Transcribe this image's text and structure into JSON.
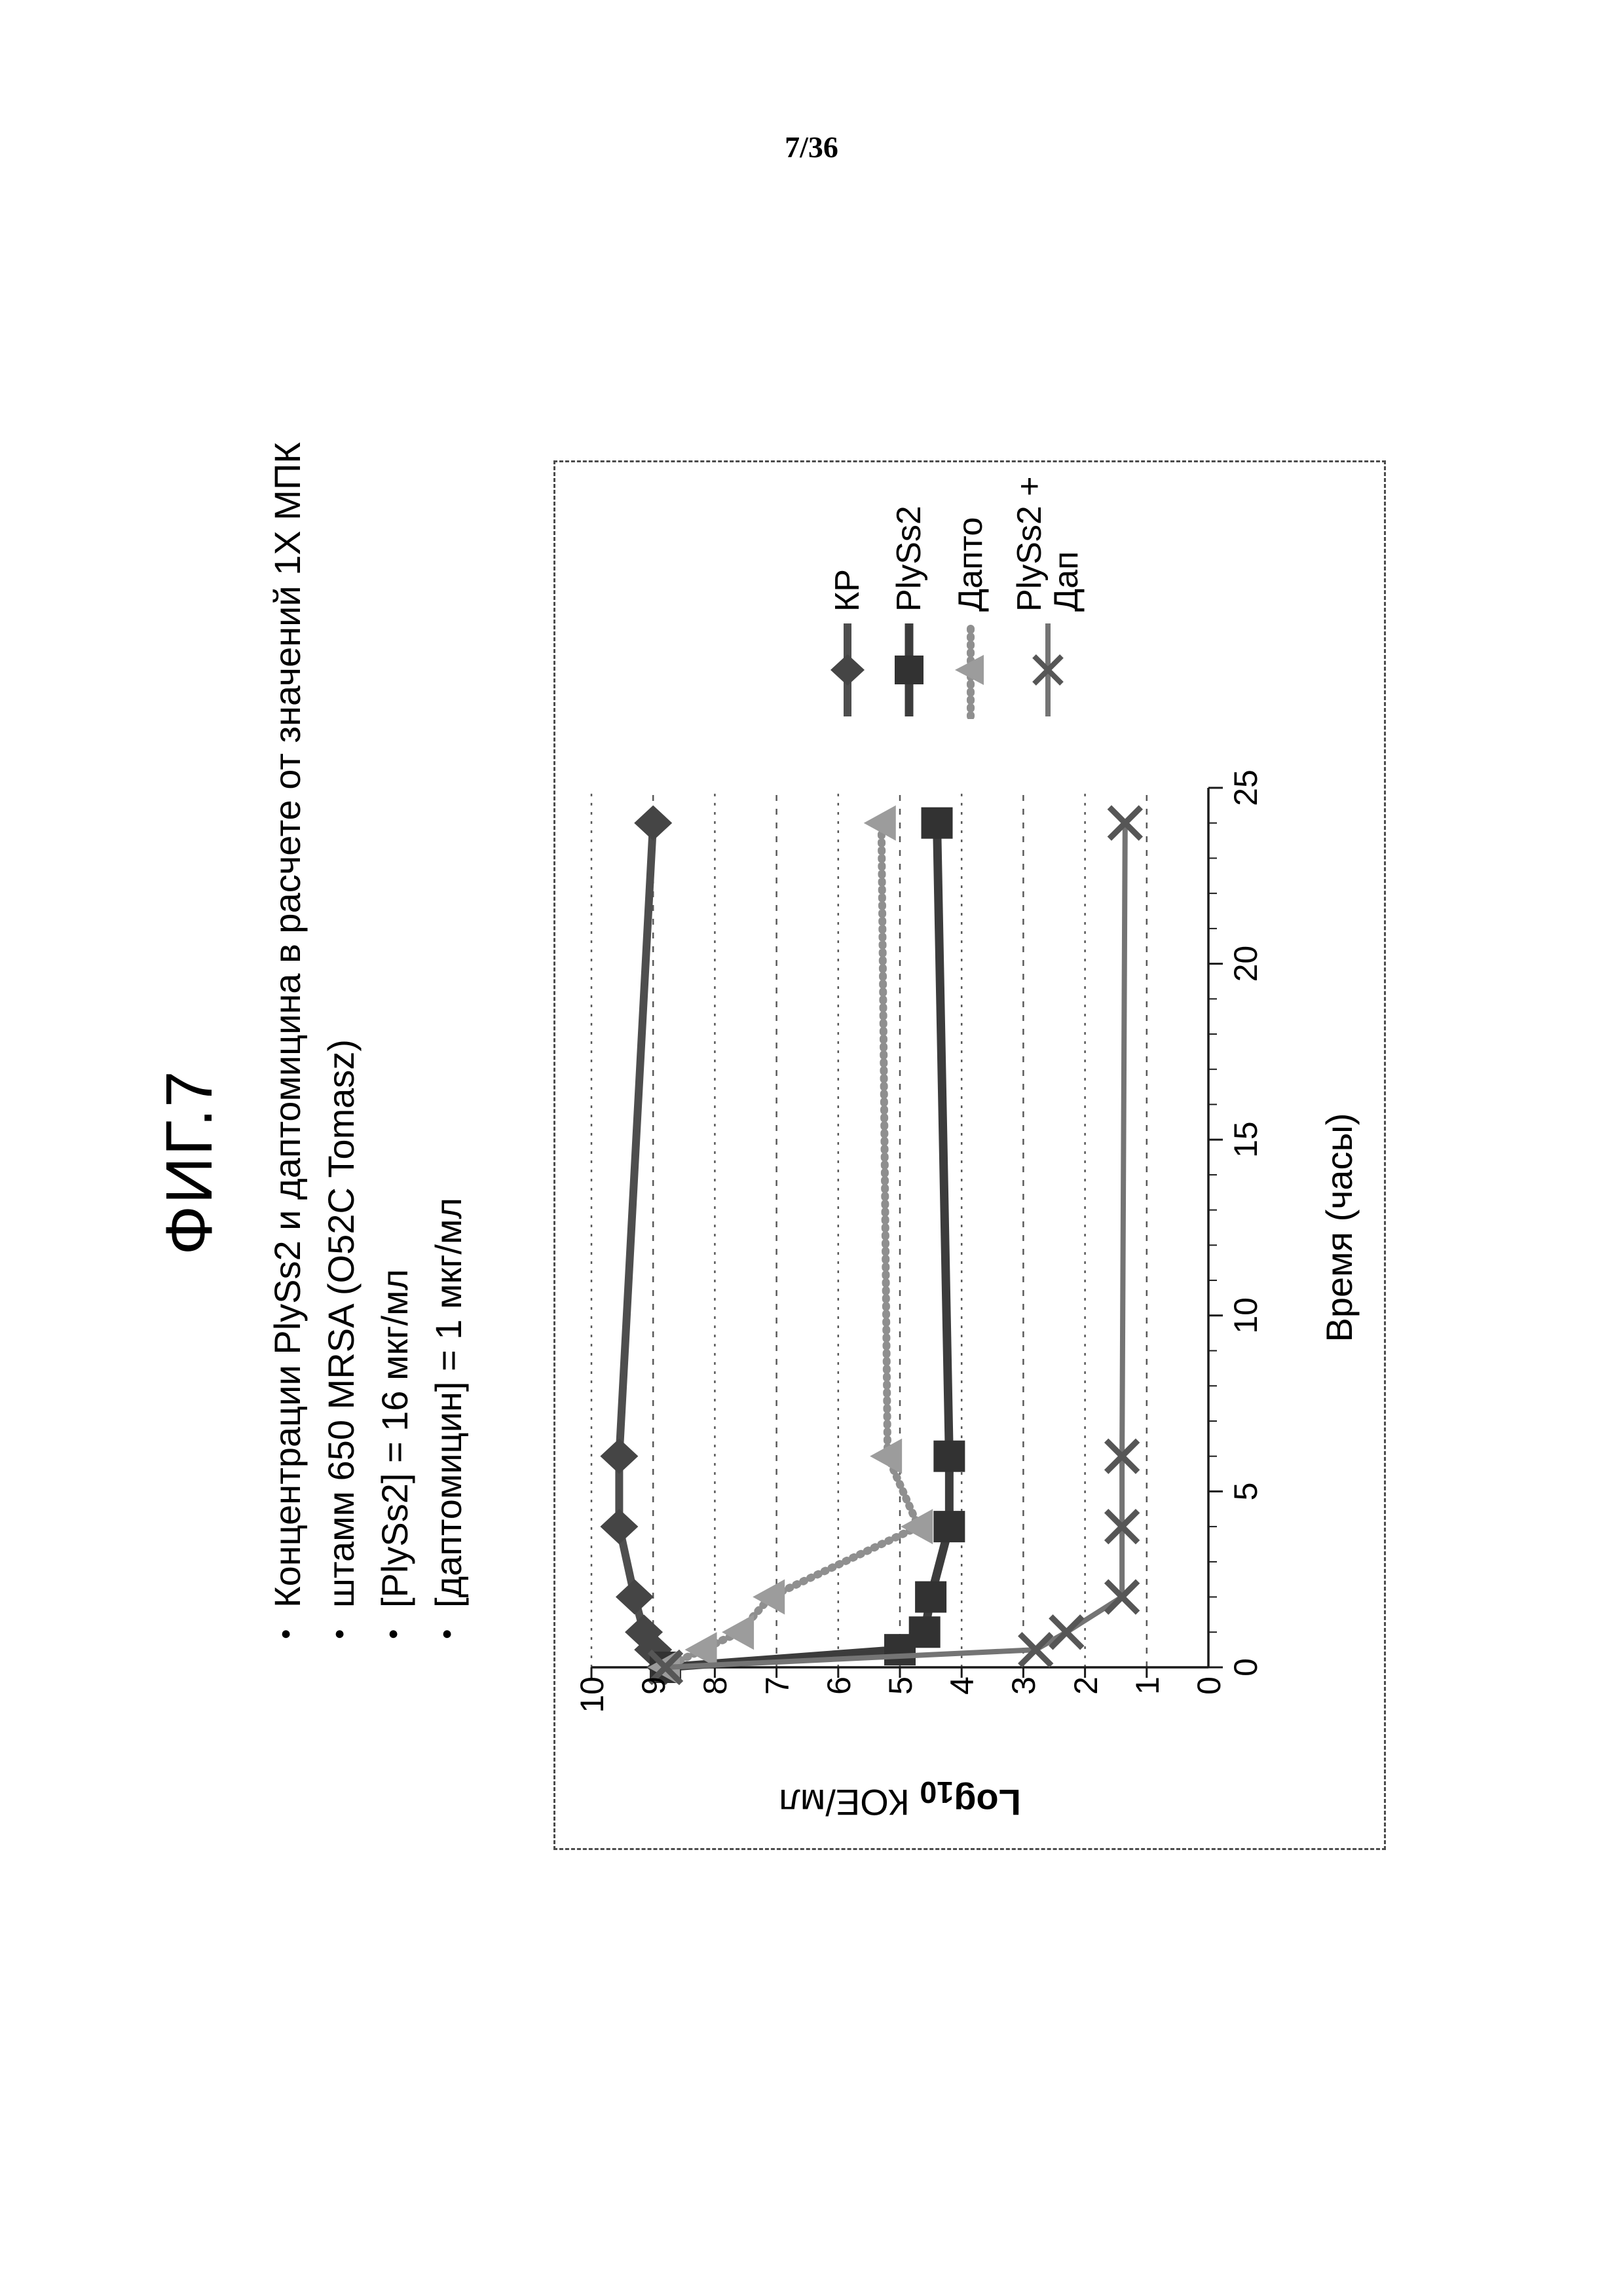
{
  "page": {
    "number": "7/36"
  },
  "figure": {
    "title": "ФИГ.7",
    "bullets": [
      "Концентрации PlySs2 и даптомицина в расчете от значений 1X МПК",
      "штамм 650 MRSA (O52C Tomasz)",
      "[PlySs2] = 16 мкг/мл",
      "[даптомицин] = 1 мкг/мл"
    ]
  },
  "chart_data": {
    "type": "line",
    "title": "",
    "x": [
      0,
      0.5,
      1,
      2,
      4,
      6,
      24
    ],
    "series": [
      {
        "name": "КР",
        "marker": "diamond",
        "color": "#454545",
        "line_color": "#4e4e4e",
        "line_width": 12,
        "dash": "",
        "values": [
          8.8,
          9.0,
          9.15,
          9.3,
          9.55,
          9.55,
          9.0
        ]
      },
      {
        "name": "PlySs2",
        "marker": "square",
        "color": "#323232",
        "line_color": "#3c3c3c",
        "line_width": 13,
        "dash": "",
        "values": [
          8.8,
          5.0,
          4.6,
          4.5,
          4.2,
          4.2,
          4.4
        ]
      },
      {
        "name": "Дапто",
        "marker": "triangle",
        "color": "#9c9c9c",
        "line_color": "#8f8f8f",
        "line_width": 12,
        "dash": "2 10",
        "values": [
          8.8,
          8.2,
          7.6,
          7.1,
          4.7,
          5.2,
          5.3
        ]
      },
      {
        "name": "PlySs2 + Дап",
        "marker": "x",
        "color": "#565656",
        "line_color": "#747474",
        "line_width": 8,
        "dash": "",
        "values": [
          8.8,
          2.8,
          2.3,
          1.4,
          1.4,
          1.4,
          1.35
        ]
      }
    ],
    "xlabel": "Время (часы)",
    "ylabel": "Log10 КОЕ/мл",
    "ylabel_parts": {
      "bold": "Log",
      "sub": "10",
      "rest": " КОЕ/мл"
    },
    "xlim": [
      0,
      25
    ],
    "ylim": [
      0,
      10
    ],
    "x_ticks": [
      0,
      5,
      10,
      15,
      20,
      25
    ],
    "x_minor_step": 1,
    "y_ticks": [
      10,
      9,
      8,
      7,
      6,
      5,
      4,
      3,
      2,
      1,
      0
    ],
    "grid": "lines at every integer log value, dotted/dashed gray",
    "legend_position": "right"
  }
}
